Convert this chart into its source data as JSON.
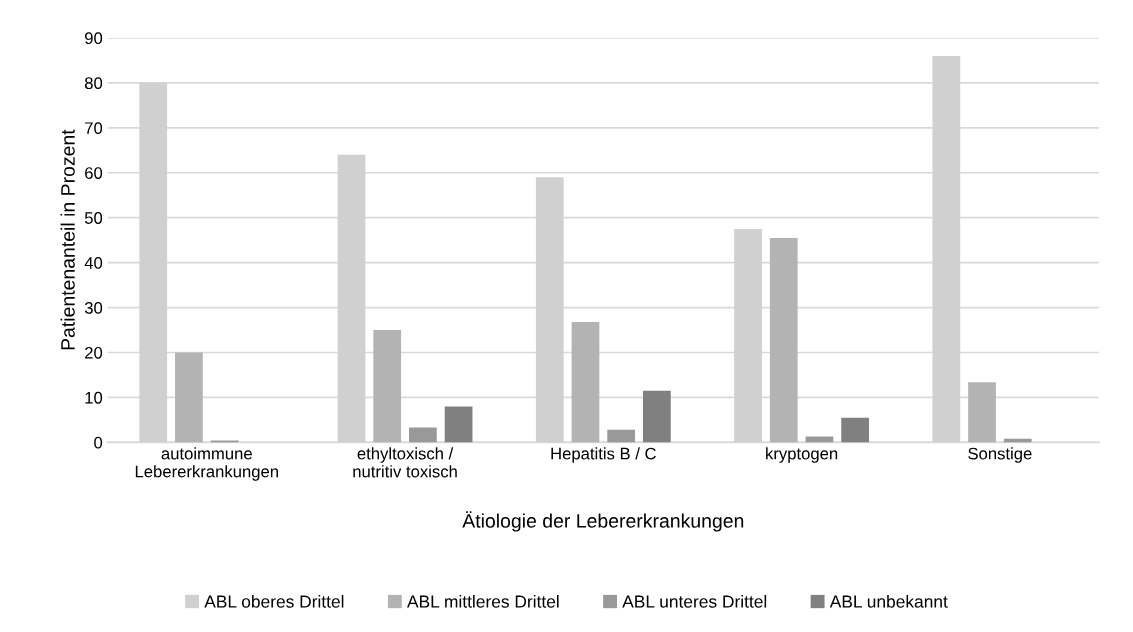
{
  "chart_data": {
    "type": "bar",
    "xlabel": "Ätiologie der Lebererkrankungen",
    "ylabel": "Patientenanteil in Prozent",
    "categories": [
      "autoimmune\nLebererkrankungen",
      "ethyltoxisch /\nnutritiv toxisch",
      "Hepatitis B / C",
      "kryptogen",
      "Sonstige"
    ],
    "series": [
      {
        "name": "ABL oberes Drittel",
        "color": "#d0d0d0",
        "values": [
          80,
          64,
          59,
          47.5,
          86
        ]
      },
      {
        "name": "ABL mittleres Drittel",
        "color": "#b3b3b3",
        "values": [
          20,
          25,
          26.8,
          45.5,
          13.4
        ]
      },
      {
        "name": "ABL unteres Drittel",
        "color": "#999999",
        "values": [
          0.4,
          3.3,
          2.8,
          1.3,
          0.8
        ]
      },
      {
        "name": "ABL unbekannt",
        "color": "#808080",
        "values": [
          0,
          8,
          11.5,
          5.5,
          0
        ]
      }
    ],
    "ylim": [
      0,
      90
    ],
    "yticks": [
      0,
      10,
      20,
      30,
      40,
      50,
      60,
      70,
      80,
      90
    ],
    "grid": "y",
    "legend": "bottom"
  }
}
